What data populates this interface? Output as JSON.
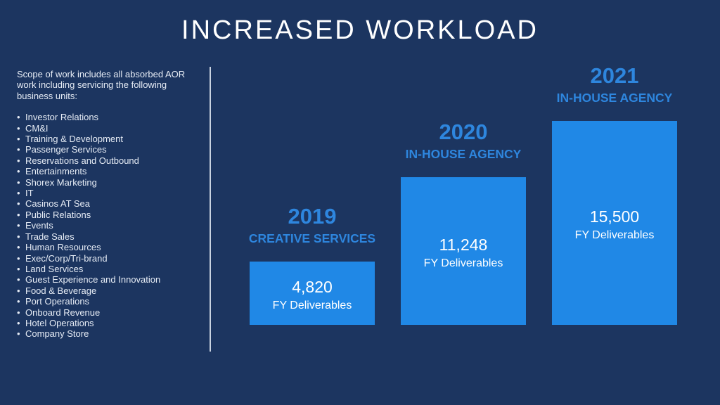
{
  "title": "INCREASED WORKLOAD",
  "scope": {
    "intro": "Scope of work includes all absorbed AOR work including servicing the following business units:",
    "units": [
      "Investor Relations",
      "CM&I",
      "Training & Development",
      "Passenger Services",
      "Reservations and Outbound",
      "Entertainments",
      "Shorex Marketing",
      "IT",
      "Casinos AT Sea",
      "Public Relations",
      "Events",
      "Trade Sales",
      "Human Resources",
      "Exec/Corp/Tri-brand",
      "Land Services",
      "Guest Experience and Innovation",
      "Food & Beverage",
      "Port Operations",
      "Onboard Revenue",
      "Hotel Operations",
      "Company Store"
    ]
  },
  "chart_data": {
    "type": "bar",
    "categories": [
      "2019",
      "2020",
      "2021"
    ],
    "subtitles": [
      "CREATIVE SERVICES",
      "IN-HOUSE AGENCY",
      "IN-HOUSE AGENCY"
    ],
    "values": [
      4820,
      11248,
      15500
    ],
    "value_labels": [
      "4,820",
      "11,248",
      "15,500"
    ],
    "bar_label": "FY Deliverables",
    "ylim": [
      0,
      15500
    ],
    "grid": false,
    "colors": {
      "bar": "#2088e6",
      "heading": "#2e86de",
      "background": "#1c3560"
    }
  }
}
